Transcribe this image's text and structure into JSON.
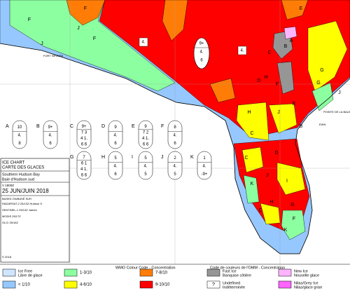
{
  "title_block": {
    "title": "ICE CHART",
    "title_fr": "CARTE DES GLACES",
    "region": "Southern Hudson Bay",
    "region_fr": "Baie d'Hudson sud",
    "valid": "V 1800Z",
    "date": "25 JUN/JUIN 2018",
    "based_on": "BASED ON/BASÉ SUR",
    "sources": [
      "RADARSAT-2   25/13Z Hudson S",
      "SENTINEL-1   25/13Z James",
      "MODIS   25/17Z",
      "OLCI   25/16Z"
    ],
    "copyright": "© 2018"
  },
  "egg_codes": [
    {
      "letter": "A",
      "lines": [
        "10",
        "4.",
        "8"
      ]
    },
    {
      "letter": "B",
      "lines": [
        "9+",
        "4.",
        "6"
      ]
    },
    {
      "letter": "C",
      "lines": [
        "9+",
        "7 3",
        "4 1.",
        "6 6"
      ]
    },
    {
      "letter": "D",
      "lines": [
        "9",
        "4.",
        "6"
      ]
    },
    {
      "letter": "E",
      "lines": [
        "9",
        "7 2",
        "4 1.",
        "6 6"
      ]
    },
    {
      "letter": "F",
      "lines": [
        "8",
        "4.",
        "6"
      ]
    },
    {
      "letter": "G",
      "lines": [
        "7",
        "6 1",
        "4 1.",
        "6 6"
      ]
    },
    {
      "letter": "H",
      "lines": [
        "5",
        "4.",
        "6"
      ]
    },
    {
      "letter": "I",
      "lines": [
        "5",
        "4.",
        "5"
      ]
    },
    {
      "letter": "J",
      "lines": [
        "2",
        "4.",
        "5"
      ]
    },
    {
      "letter": "K",
      "lines": [
        "1",
        "4.",
        "-9+"
      ]
    }
  ],
  "map": {
    "egg": [
      "9+",
      "4.",
      "6"
    ],
    "boxes": [
      "4.",
      "4."
    ],
    "region_labels": [
      "F",
      "F",
      "J",
      "F",
      "J",
      "G",
      "E",
      "A",
      "C",
      "B",
      "H",
      "F",
      "D",
      "G",
      "J",
      "H",
      "J",
      "E",
      "C",
      "B",
      "C",
      "D",
      "K",
      "J",
      "I",
      "H",
      "G",
      "F",
      "K",
      "C"
    ],
    "places": [
      "FORT SEVERN",
      "POINTE DE LA BALEINE",
      "EWN"
    ]
  },
  "legend": {
    "title": "WMO Colour Code - Concentration",
    "title_fr": "Code de couleurs de l'OMM - Concentration",
    "items": [
      {
        "label": "Ice Free",
        "label_fr": "Libre de glace",
        "color": "#cfe6ff"
      },
      {
        "label": "< 1/10",
        "color": "#96c8ff"
      },
      {
        "label": "1-3/10",
        "color": "#8cff a0"
      },
      {
        "label": "4-6/10",
        "color": "#ffff00"
      },
      {
        "label": "7-8/10",
        "color": "#ff7d07"
      },
      {
        "label": "9-10/10",
        "color": "#ff0000"
      },
      {
        "label": "Fast Ice",
        "label_fr": "Banquise côtière",
        "color": "#969696"
      },
      {
        "label": "Undefined",
        "label_fr": "Indéterminée",
        "symbol": "?",
        "color": "#ffffff"
      },
      {
        "label": "New Ice",
        "label_fr": "Nouvelle glace",
        "color": "#ffb4ff"
      },
      {
        "label": "Nilas/Grey Ice",
        "label_fr": "Nilas/glace grise",
        "color": "#ff64ff"
      }
    ]
  }
}
